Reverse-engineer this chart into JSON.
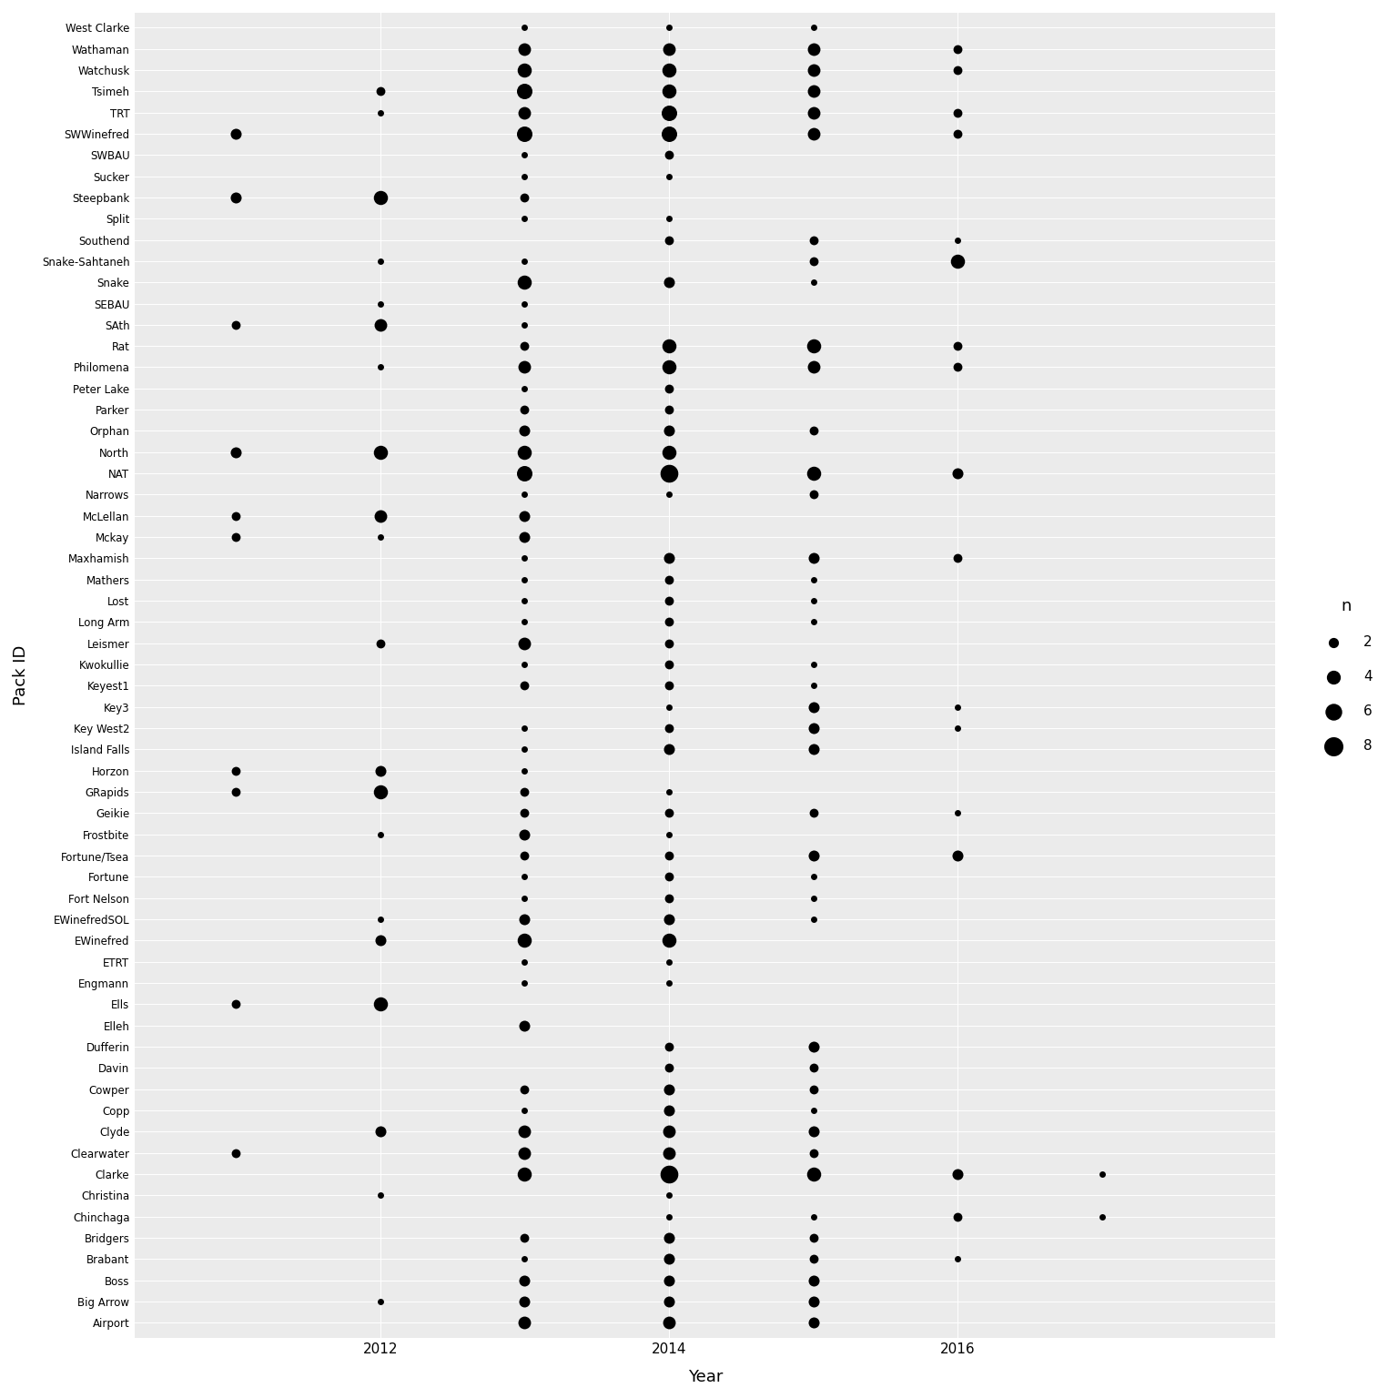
{
  "packs": [
    "Airport",
    "Big Arrow",
    "Boss",
    "Brabant",
    "Bridgers",
    "Chinchaga",
    "Christina",
    "Clarke",
    "Clearwater",
    "Clyde",
    "Copp",
    "Cowper",
    "Davin",
    "Dufferin",
    "Elleh",
    "Ells",
    "Engmann",
    "ETRT",
    "EWinefred",
    "EWinefredSOL",
    "Fort Nelson",
    "Fortune",
    "Fortune/Tsea",
    "Frostbite",
    "Geikie",
    "GRapids",
    "Horzon",
    "Island Falls",
    "Key West2",
    "Key3",
    "Keyest1",
    "Kwokullie",
    "Leismer",
    "Long Arm",
    "Lost",
    "Mathers",
    "Maxhamish",
    "Mckay",
    "McLellan",
    "Narrows",
    "NAT",
    "North",
    "Orphan",
    "Parker",
    "Peter Lake",
    "Philomena",
    "Rat",
    "SAth",
    "SEBAU",
    "Snake",
    "Snake-Sahtaneh",
    "Southend",
    "Split",
    "Steepbank",
    "Sucker",
    "SWBAU",
    "SWWinefred",
    "TRT",
    "Tsimeh",
    "Watchusk",
    "Wathaman",
    "West Clarke"
  ],
  "observations": [
    {
      "pack": "Airport",
      "year": 2013,
      "n": 4
    },
    {
      "pack": "Airport",
      "year": 2014,
      "n": 4
    },
    {
      "pack": "Airport",
      "year": 2015,
      "n": 3
    },
    {
      "pack": "Big Arrow",
      "year": 2012,
      "n": 1
    },
    {
      "pack": "Big Arrow",
      "year": 2013,
      "n": 3
    },
    {
      "pack": "Big Arrow",
      "year": 2014,
      "n": 3
    },
    {
      "pack": "Big Arrow",
      "year": 2015,
      "n": 3
    },
    {
      "pack": "Boss",
      "year": 2013,
      "n": 3
    },
    {
      "pack": "Boss",
      "year": 2014,
      "n": 3
    },
    {
      "pack": "Boss",
      "year": 2015,
      "n": 3
    },
    {
      "pack": "Brabant",
      "year": 2013,
      "n": 1
    },
    {
      "pack": "Brabant",
      "year": 2014,
      "n": 3
    },
    {
      "pack": "Brabant",
      "year": 2015,
      "n": 2
    },
    {
      "pack": "Brabant",
      "year": 2016,
      "n": 1
    },
    {
      "pack": "Bridgers",
      "year": 2013,
      "n": 2
    },
    {
      "pack": "Bridgers",
      "year": 2014,
      "n": 3
    },
    {
      "pack": "Bridgers",
      "year": 2015,
      "n": 2
    },
    {
      "pack": "Chinchaga",
      "year": 2014,
      "n": 1
    },
    {
      "pack": "Chinchaga",
      "year": 2015,
      "n": 1
    },
    {
      "pack": "Chinchaga",
      "year": 2016,
      "n": 2
    },
    {
      "pack": "Chinchaga",
      "year": 2017,
      "n": 1
    },
    {
      "pack": "Christina",
      "year": 2012,
      "n": 1
    },
    {
      "pack": "Christina",
      "year": 2014,
      "n": 1
    },
    {
      "pack": "Clarke",
      "year": 2013,
      "n": 5
    },
    {
      "pack": "Clarke",
      "year": 2014,
      "n": 8
    },
    {
      "pack": "Clarke",
      "year": 2015,
      "n": 5
    },
    {
      "pack": "Clarke",
      "year": 2016,
      "n": 3
    },
    {
      "pack": "Clarke",
      "year": 2017,
      "n": 1
    },
    {
      "pack": "Clearwater",
      "year": 2011,
      "n": 2
    },
    {
      "pack": "Clearwater",
      "year": 2013,
      "n": 4
    },
    {
      "pack": "Clearwater",
      "year": 2014,
      "n": 4
    },
    {
      "pack": "Clearwater",
      "year": 2015,
      "n": 2
    },
    {
      "pack": "Clyde",
      "year": 2012,
      "n": 3
    },
    {
      "pack": "Clyde",
      "year": 2013,
      "n": 4
    },
    {
      "pack": "Clyde",
      "year": 2014,
      "n": 4
    },
    {
      "pack": "Clyde",
      "year": 2015,
      "n": 3
    },
    {
      "pack": "Copp",
      "year": 2013,
      "n": 1
    },
    {
      "pack": "Copp",
      "year": 2014,
      "n": 3
    },
    {
      "pack": "Copp",
      "year": 2015,
      "n": 1
    },
    {
      "pack": "Cowper",
      "year": 2013,
      "n": 2
    },
    {
      "pack": "Cowper",
      "year": 2014,
      "n": 3
    },
    {
      "pack": "Cowper",
      "year": 2015,
      "n": 2
    },
    {
      "pack": "Davin",
      "year": 2014,
      "n": 2
    },
    {
      "pack": "Davin",
      "year": 2015,
      "n": 2
    },
    {
      "pack": "Dufferin",
      "year": 2014,
      "n": 2
    },
    {
      "pack": "Dufferin",
      "year": 2015,
      "n": 3
    },
    {
      "pack": "Elleh",
      "year": 2013,
      "n": 3
    },
    {
      "pack": "Ells",
      "year": 2011,
      "n": 2
    },
    {
      "pack": "Ells",
      "year": 2012,
      "n": 5
    },
    {
      "pack": "Engmann",
      "year": 2013,
      "n": 1
    },
    {
      "pack": "Engmann",
      "year": 2014,
      "n": 1
    },
    {
      "pack": "ETRT",
      "year": 2013,
      "n": 1
    },
    {
      "pack": "ETRT",
      "year": 2014,
      "n": 1
    },
    {
      "pack": "EWinefred",
      "year": 2012,
      "n": 3
    },
    {
      "pack": "EWinefred",
      "year": 2013,
      "n": 5
    },
    {
      "pack": "EWinefred",
      "year": 2014,
      "n": 5
    },
    {
      "pack": "EWinefredSOL",
      "year": 2012,
      "n": 1
    },
    {
      "pack": "EWinefredSOL",
      "year": 2013,
      "n": 3
    },
    {
      "pack": "EWinefredSOL",
      "year": 2014,
      "n": 3
    },
    {
      "pack": "EWinefredSOL",
      "year": 2015,
      "n": 1
    },
    {
      "pack": "Fort Nelson",
      "year": 2013,
      "n": 1
    },
    {
      "pack": "Fort Nelson",
      "year": 2014,
      "n": 2
    },
    {
      "pack": "Fort Nelson",
      "year": 2015,
      "n": 1
    },
    {
      "pack": "Fortune",
      "year": 2013,
      "n": 1
    },
    {
      "pack": "Fortune",
      "year": 2014,
      "n": 2
    },
    {
      "pack": "Fortune",
      "year": 2015,
      "n": 1
    },
    {
      "pack": "Fortune/Tsea",
      "year": 2013,
      "n": 2
    },
    {
      "pack": "Fortune/Tsea",
      "year": 2014,
      "n": 2
    },
    {
      "pack": "Fortune/Tsea",
      "year": 2015,
      "n": 3
    },
    {
      "pack": "Fortune/Tsea",
      "year": 2016,
      "n": 3
    },
    {
      "pack": "Frostbite",
      "year": 2012,
      "n": 1
    },
    {
      "pack": "Frostbite",
      "year": 2013,
      "n": 3
    },
    {
      "pack": "Frostbite",
      "year": 2014,
      "n": 1
    },
    {
      "pack": "Geikie",
      "year": 2013,
      "n": 2
    },
    {
      "pack": "Geikie",
      "year": 2014,
      "n": 2
    },
    {
      "pack": "Geikie",
      "year": 2015,
      "n": 2
    },
    {
      "pack": "Geikie",
      "year": 2016,
      "n": 1
    },
    {
      "pack": "GRapids",
      "year": 2011,
      "n": 2
    },
    {
      "pack": "GRapids",
      "year": 2012,
      "n": 5
    },
    {
      "pack": "GRapids",
      "year": 2013,
      "n": 2
    },
    {
      "pack": "GRapids",
      "year": 2014,
      "n": 1
    },
    {
      "pack": "Horzon",
      "year": 2011,
      "n": 2
    },
    {
      "pack": "Horzon",
      "year": 2012,
      "n": 3
    },
    {
      "pack": "Horzon",
      "year": 2013,
      "n": 1
    },
    {
      "pack": "Island Falls",
      "year": 2013,
      "n": 1
    },
    {
      "pack": "Island Falls",
      "year": 2014,
      "n": 3
    },
    {
      "pack": "Island Falls",
      "year": 2015,
      "n": 3
    },
    {
      "pack": "Key West2",
      "year": 2013,
      "n": 1
    },
    {
      "pack": "Key West2",
      "year": 2014,
      "n": 2
    },
    {
      "pack": "Key West2",
      "year": 2015,
      "n": 3
    },
    {
      "pack": "Key West2",
      "year": 2016,
      "n": 1
    },
    {
      "pack": "Key3",
      "year": 2014,
      "n": 1
    },
    {
      "pack": "Key3",
      "year": 2015,
      "n": 3
    },
    {
      "pack": "Key3",
      "year": 2016,
      "n": 1
    },
    {
      "pack": "Keyest1",
      "year": 2013,
      "n": 2
    },
    {
      "pack": "Keyest1",
      "year": 2014,
      "n": 2
    },
    {
      "pack": "Keyest1",
      "year": 2015,
      "n": 1
    },
    {
      "pack": "Kwokullie",
      "year": 2013,
      "n": 1
    },
    {
      "pack": "Kwokullie",
      "year": 2014,
      "n": 2
    },
    {
      "pack": "Kwokullie",
      "year": 2015,
      "n": 1
    },
    {
      "pack": "Leismer",
      "year": 2012,
      "n": 2
    },
    {
      "pack": "Leismer",
      "year": 2013,
      "n": 4
    },
    {
      "pack": "Leismer",
      "year": 2014,
      "n": 2
    },
    {
      "pack": "Long Arm",
      "year": 2013,
      "n": 1
    },
    {
      "pack": "Long Arm",
      "year": 2014,
      "n": 2
    },
    {
      "pack": "Long Arm",
      "year": 2015,
      "n": 1
    },
    {
      "pack": "Lost",
      "year": 2013,
      "n": 1
    },
    {
      "pack": "Lost",
      "year": 2014,
      "n": 2
    },
    {
      "pack": "Lost",
      "year": 2015,
      "n": 1
    },
    {
      "pack": "Mathers",
      "year": 2013,
      "n": 1
    },
    {
      "pack": "Mathers",
      "year": 2014,
      "n": 2
    },
    {
      "pack": "Mathers",
      "year": 2015,
      "n": 1
    },
    {
      "pack": "Maxhamish",
      "year": 2013,
      "n": 1
    },
    {
      "pack": "Maxhamish",
      "year": 2014,
      "n": 3
    },
    {
      "pack": "Maxhamish",
      "year": 2015,
      "n": 3
    },
    {
      "pack": "Maxhamish",
      "year": 2016,
      "n": 2
    },
    {
      "pack": "Mckay",
      "year": 2011,
      "n": 2
    },
    {
      "pack": "Mckay",
      "year": 2012,
      "n": 1
    },
    {
      "pack": "Mckay",
      "year": 2013,
      "n": 3
    },
    {
      "pack": "McLellan",
      "year": 2011,
      "n": 2
    },
    {
      "pack": "McLellan",
      "year": 2012,
      "n": 4
    },
    {
      "pack": "McLellan",
      "year": 2013,
      "n": 3
    },
    {
      "pack": "Narrows",
      "year": 2013,
      "n": 1
    },
    {
      "pack": "Narrows",
      "year": 2014,
      "n": 1
    },
    {
      "pack": "Narrows",
      "year": 2015,
      "n": 2
    },
    {
      "pack": "NAT",
      "year": 2013,
      "n": 6
    },
    {
      "pack": "NAT",
      "year": 2014,
      "n": 8
    },
    {
      "pack": "NAT",
      "year": 2015,
      "n": 5
    },
    {
      "pack": "NAT",
      "year": 2016,
      "n": 3
    },
    {
      "pack": "North",
      "year": 2011,
      "n": 3
    },
    {
      "pack": "North",
      "year": 2012,
      "n": 5
    },
    {
      "pack": "North",
      "year": 2013,
      "n": 5
    },
    {
      "pack": "North",
      "year": 2014,
      "n": 5
    },
    {
      "pack": "Orphan",
      "year": 2013,
      "n": 3
    },
    {
      "pack": "Orphan",
      "year": 2014,
      "n": 3
    },
    {
      "pack": "Orphan",
      "year": 2015,
      "n": 2
    },
    {
      "pack": "Parker",
      "year": 2013,
      "n": 2
    },
    {
      "pack": "Parker",
      "year": 2014,
      "n": 2
    },
    {
      "pack": "Peter Lake",
      "year": 2013,
      "n": 1
    },
    {
      "pack": "Peter Lake",
      "year": 2014,
      "n": 2
    },
    {
      "pack": "Philomena",
      "year": 2012,
      "n": 1
    },
    {
      "pack": "Philomena",
      "year": 2013,
      "n": 4
    },
    {
      "pack": "Philomena",
      "year": 2014,
      "n": 5
    },
    {
      "pack": "Philomena",
      "year": 2015,
      "n": 4
    },
    {
      "pack": "Philomena",
      "year": 2016,
      "n": 2
    },
    {
      "pack": "Rat",
      "year": 2013,
      "n": 2
    },
    {
      "pack": "Rat",
      "year": 2014,
      "n": 5
    },
    {
      "pack": "Rat",
      "year": 2015,
      "n": 5
    },
    {
      "pack": "Rat",
      "year": 2016,
      "n": 2
    },
    {
      "pack": "SAth",
      "year": 2011,
      "n": 2
    },
    {
      "pack": "SAth",
      "year": 2012,
      "n": 4
    },
    {
      "pack": "SAth",
      "year": 2013,
      "n": 1
    },
    {
      "pack": "SEBAU",
      "year": 2012,
      "n": 1
    },
    {
      "pack": "SEBAU",
      "year": 2013,
      "n": 1
    },
    {
      "pack": "Snake",
      "year": 2013,
      "n": 5
    },
    {
      "pack": "Snake",
      "year": 2014,
      "n": 3
    },
    {
      "pack": "Snake",
      "year": 2015,
      "n": 1
    },
    {
      "pack": "Snake-Sahtaneh",
      "year": 2012,
      "n": 1
    },
    {
      "pack": "Snake-Sahtaneh",
      "year": 2013,
      "n": 1
    },
    {
      "pack": "Snake-Sahtaneh",
      "year": 2015,
      "n": 2
    },
    {
      "pack": "Snake-Sahtaneh",
      "year": 2016,
      "n": 5
    },
    {
      "pack": "Southend",
      "year": 2014,
      "n": 2
    },
    {
      "pack": "Southend",
      "year": 2015,
      "n": 2
    },
    {
      "pack": "Southend",
      "year": 2016,
      "n": 1
    },
    {
      "pack": "Split",
      "year": 2013,
      "n": 1
    },
    {
      "pack": "Split",
      "year": 2014,
      "n": 1
    },
    {
      "pack": "Steepbank",
      "year": 2011,
      "n": 3
    },
    {
      "pack": "Steepbank",
      "year": 2012,
      "n": 5
    },
    {
      "pack": "Steepbank",
      "year": 2013,
      "n": 2
    },
    {
      "pack": "Sucker",
      "year": 2013,
      "n": 1
    },
    {
      "pack": "Sucker",
      "year": 2014,
      "n": 1
    },
    {
      "pack": "SWBAU",
      "year": 2013,
      "n": 1
    },
    {
      "pack": "SWBAU",
      "year": 2014,
      "n": 2
    },
    {
      "pack": "SWWinefred",
      "year": 2011,
      "n": 3
    },
    {
      "pack": "SWWinefred",
      "year": 2013,
      "n": 6
    },
    {
      "pack": "SWWinefred",
      "year": 2014,
      "n": 6
    },
    {
      "pack": "SWWinefred",
      "year": 2015,
      "n": 4
    },
    {
      "pack": "SWWinefred",
      "year": 2016,
      "n": 2
    },
    {
      "pack": "TRT",
      "year": 2012,
      "n": 1
    },
    {
      "pack": "TRT",
      "year": 2013,
      "n": 4
    },
    {
      "pack": "TRT",
      "year": 2014,
      "n": 6
    },
    {
      "pack": "TRT",
      "year": 2015,
      "n": 4
    },
    {
      "pack": "TRT",
      "year": 2016,
      "n": 2
    },
    {
      "pack": "Tsimeh",
      "year": 2012,
      "n": 2
    },
    {
      "pack": "Tsimeh",
      "year": 2013,
      "n": 6
    },
    {
      "pack": "Tsimeh",
      "year": 2014,
      "n": 5
    },
    {
      "pack": "Tsimeh",
      "year": 2015,
      "n": 4
    },
    {
      "pack": "Watchusk",
      "year": 2013,
      "n": 5
    },
    {
      "pack": "Watchusk",
      "year": 2014,
      "n": 5
    },
    {
      "pack": "Watchusk",
      "year": 2015,
      "n": 4
    },
    {
      "pack": "Watchusk",
      "year": 2016,
      "n": 2
    },
    {
      "pack": "Wathaman",
      "year": 2013,
      "n": 4
    },
    {
      "pack": "Wathaman",
      "year": 2014,
      "n": 4
    },
    {
      "pack": "Wathaman",
      "year": 2015,
      "n": 4
    },
    {
      "pack": "Wathaman",
      "year": 2016,
      "n": 2
    },
    {
      "pack": "West Clarke",
      "year": 2013,
      "n": 1
    },
    {
      "pack": "West Clarke",
      "year": 2014,
      "n": 1
    },
    {
      "pack": "West Clarke",
      "year": 2015,
      "n": 1
    }
  ],
  "legend_values": [
    2,
    4,
    6,
    8
  ],
  "bg_color": "#EBEBEB",
  "grid_color": "#FFFFFF",
  "dot_color": "#000000",
  "xlabel": "Year",
  "ylabel": "Pack ID",
  "legend_title": "n",
  "xmin": 2010.3,
  "xmax": 2018.2,
  "xticks": [
    2012,
    2014,
    2016
  ],
  "ytick_fontsize": 8.5,
  "xtick_fontsize": 11,
  "axis_label_fontsize": 13,
  "legend_fontsize": 11,
  "legend_title_fontsize": 13
}
